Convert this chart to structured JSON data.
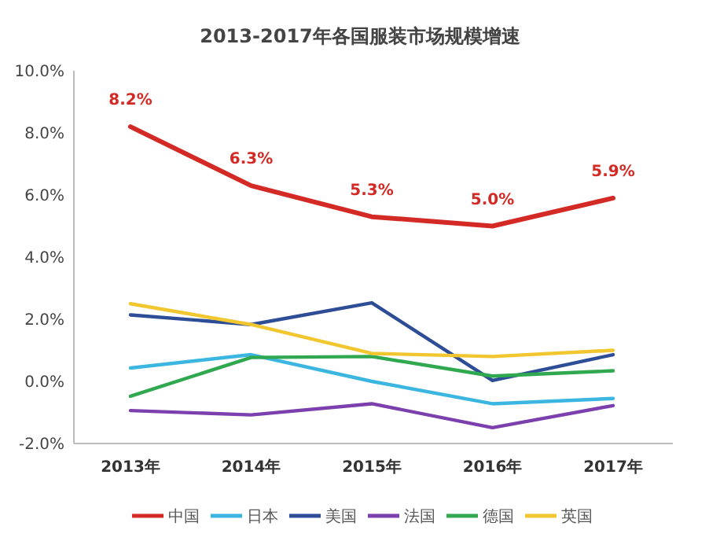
{
  "chart_data": {
    "type": "line",
    "title": "2013-2017年各国服装市场规模增速",
    "categories": [
      "2013年",
      "2014年",
      "2015年",
      "2016年",
      "2017年"
    ],
    "series": [
      {
        "name": "中国",
        "color": "#d42a26",
        "values": [
          8.2,
          6.3,
          5.3,
          5.0,
          5.9
        ],
        "value_labels": [
          "8.2%",
          "6.3%",
          "5.3%",
          "5.0%",
          "5.9%"
        ]
      },
      {
        "name": "日本",
        "color": "#3bb6e0",
        "values": [
          0.43,
          0.86,
          0.0,
          -0.72,
          -0.55
        ]
      },
      {
        "name": "美国",
        "color": "#2e4d97",
        "values": [
          2.14,
          1.83,
          2.53,
          0.03,
          0.86
        ]
      },
      {
        "name": "法国",
        "color": "#7b3fae",
        "values": [
          -0.94,
          -1.08,
          -0.72,
          -1.49,
          -0.78
        ]
      },
      {
        "name": "德国",
        "color": "#2fa84f",
        "values": [
          -0.48,
          0.77,
          0.8,
          0.17,
          0.34
        ]
      },
      {
        "name": "英国",
        "color": "#f2c62e",
        "values": [
          2.5,
          1.83,
          0.9,
          0.8,
          1.0
        ]
      }
    ],
    "ylim": [
      -2,
      10
    ],
    "yticks": [
      {
        "value": -2,
        "label": "-2.0%"
      },
      {
        "value": 0,
        "label": "0.0%"
      },
      {
        "value": 2,
        "label": "2.0%"
      },
      {
        "value": 4,
        "label": "4.0%"
      },
      {
        "value": 6,
        "label": "6.0%"
      },
      {
        "value": 8,
        "label": "8.0%"
      },
      {
        "value": 10,
        "label": "10.0%"
      }
    ],
    "grid": false,
    "legend": "bottom",
    "marker": "none",
    "line_style": "solid"
  }
}
